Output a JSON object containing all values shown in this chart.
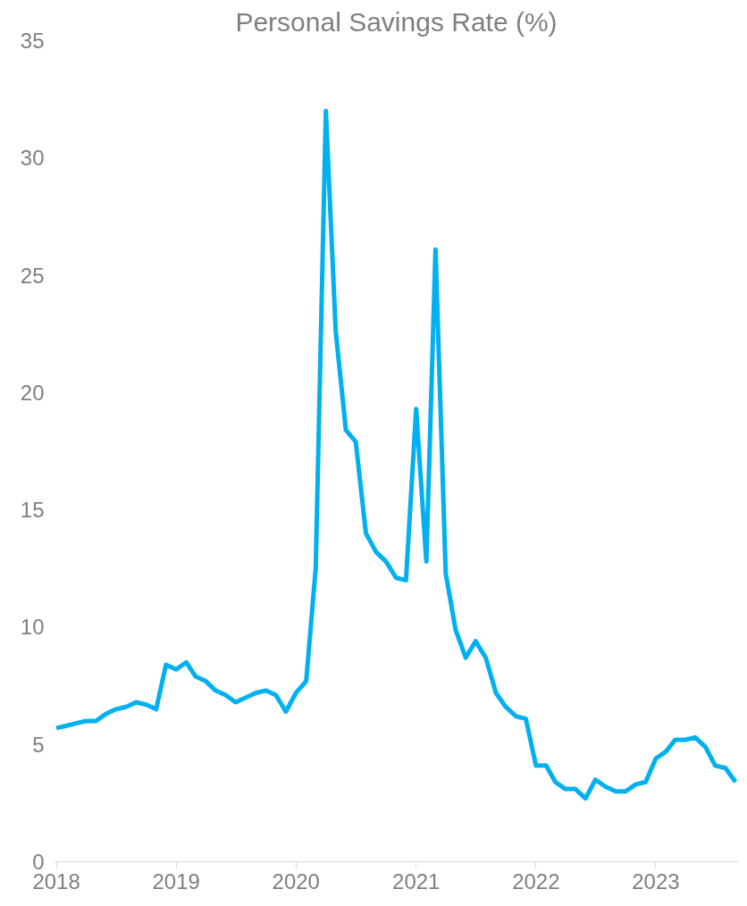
{
  "chart_data": {
    "type": "line",
    "title": "Personal Savings Rate (%)",
    "x": [
      "2018-01",
      "2018-02",
      "2018-03",
      "2018-04",
      "2018-05",
      "2018-06",
      "2018-07",
      "2018-08",
      "2018-09",
      "2018-10",
      "2018-11",
      "2018-12",
      "2019-01",
      "2019-02",
      "2019-03",
      "2019-04",
      "2019-05",
      "2019-06",
      "2019-07",
      "2019-08",
      "2019-09",
      "2019-10",
      "2019-11",
      "2019-12",
      "2020-01",
      "2020-02",
      "2020-03",
      "2020-04",
      "2020-05",
      "2020-06",
      "2020-07",
      "2020-08",
      "2020-09",
      "2020-10",
      "2020-11",
      "2020-12",
      "2021-01",
      "2021-02",
      "2021-03",
      "2021-04",
      "2021-05",
      "2021-06",
      "2021-07",
      "2021-08",
      "2021-09",
      "2021-10",
      "2021-11",
      "2021-12",
      "2022-01",
      "2022-02",
      "2022-03",
      "2022-04",
      "2022-05",
      "2022-06",
      "2022-07",
      "2022-08",
      "2022-09",
      "2022-10",
      "2022-11",
      "2022-12",
      "2023-01",
      "2023-02",
      "2023-03",
      "2023-04",
      "2023-05",
      "2023-06",
      "2023-07",
      "2023-08",
      "2023-09"
    ],
    "series": [
      {
        "color": "#00b0f0",
        "values": [
          5.7,
          5.8,
          5.9,
          6.0,
          6.0,
          6.3,
          6.5,
          6.6,
          6.8,
          6.7,
          6.5,
          8.4,
          8.2,
          8.5,
          7.9,
          7.7,
          7.3,
          7.1,
          6.8,
          7.0,
          7.2,
          7.3,
          7.1,
          6.4,
          7.2,
          7.7,
          12.5,
          32.0,
          22.6,
          18.4,
          17.9,
          14.0,
          13.2,
          12.8,
          12.1,
          12.0,
          19.3,
          12.8,
          26.1,
          12.3,
          9.9,
          8.7,
          9.4,
          8.7,
          7.2,
          6.6,
          6.2,
          6.1,
          4.1,
          4.1,
          3.4,
          3.1,
          3.1,
          2.7,
          3.5,
          3.2,
          3.0,
          3.0,
          3.3,
          3.4,
          4.4,
          4.7,
          5.2,
          5.2,
          5.3,
          4.9,
          4.1,
          4.0,
          3.4
        ]
      }
    ],
    "xlim": [
      "2017-12-25",
      "2023-09-10"
    ],
    "xticks": [
      "2018",
      "2019",
      "2020",
      "2021",
      "2022",
      "2023"
    ],
    "ylim": [
      0,
      35
    ],
    "yticks": [
      0,
      5,
      10,
      15,
      20,
      25,
      30,
      35
    ],
    "grid": false,
    "marker": "none",
    "line_style": "solid"
  }
}
